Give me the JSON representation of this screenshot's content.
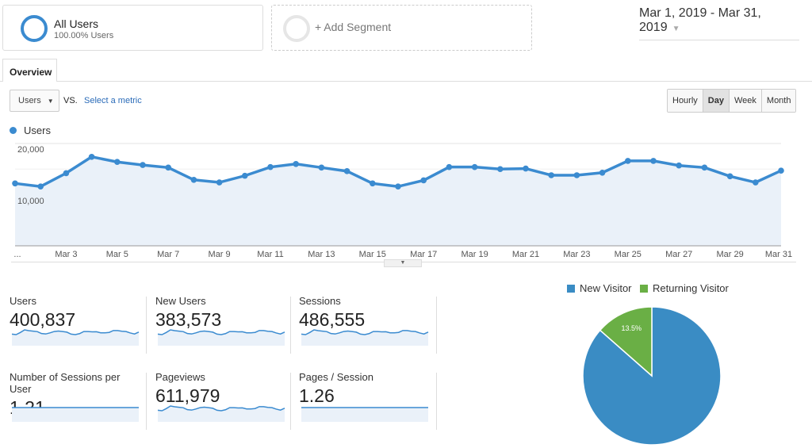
{
  "segments": {
    "all_users": {
      "title": "All Users",
      "subtitle": "100.00% Users"
    },
    "add_segment": "+ Add Segment"
  },
  "date_range": "Mar 1, 2019 - Mar 31, 2019",
  "tabs": [
    {
      "label": "Overview",
      "active": true
    }
  ],
  "controls": {
    "metric_select": "Users",
    "vs": "VS.",
    "select_metric": "Select a metric",
    "granularity": [
      {
        "label": "Hourly",
        "active": false
      },
      {
        "label": "Day",
        "active": true
      },
      {
        "label": "Week",
        "active": false
      },
      {
        "label": "Month",
        "active": false
      }
    ]
  },
  "colors": {
    "accent": "#3b8bd0",
    "area": "#eaf1f9",
    "new_visitor": "#3a8cc4",
    "returning_visitor": "#6aaf45"
  },
  "chart_data": [
    {
      "type": "area",
      "series": [
        {
          "name": "Users",
          "values": [
            12200,
            11600,
            14200,
            17400,
            16400,
            15800,
            15300,
            12900,
            12400,
            13700,
            15400,
            16000,
            15300,
            14600,
            12200,
            11600,
            12800,
            15400,
            15400,
            15000,
            15100,
            13800,
            13800,
            14300,
            16600,
            16600,
            15700,
            15300,
            13600,
            12400,
            14700
          ]
        }
      ],
      "x": [
        "Mar 1",
        "Mar 2",
        "Mar 3",
        "Mar 4",
        "Mar 5",
        "Mar 6",
        "Mar 7",
        "Mar 8",
        "Mar 9",
        "Mar 10",
        "Mar 11",
        "Mar 12",
        "Mar 13",
        "Mar 14",
        "Mar 15",
        "Mar 16",
        "Mar 17",
        "Mar 18",
        "Mar 19",
        "Mar 20",
        "Mar 21",
        "Mar 22",
        "Mar 23",
        "Mar 24",
        "Mar 25",
        "Mar 26",
        "Mar 27",
        "Mar 28",
        "Mar 29",
        "Mar 30",
        "Mar 31"
      ],
      "x_tick_labels": [
        "...",
        "Mar 3",
        "Mar 5",
        "Mar 7",
        "Mar 9",
        "Mar 11",
        "Mar 13",
        "Mar 15",
        "Mar 17",
        "Mar 19",
        "Mar 21",
        "Mar 23",
        "Mar 25",
        "Mar 27",
        "Mar 29",
        "Mar 31"
      ],
      "y_tick_labels": [
        "20,000",
        "10,000"
      ],
      "ylim": [
        0,
        20000
      ],
      "grid": true,
      "legend": "top-left"
    },
    {
      "type": "pie",
      "categories": [
        "New Visitor",
        "Returning Visitor"
      ],
      "values": [
        86.5,
        13.5
      ],
      "labels": [
        "86.5%",
        "13.5%"
      ],
      "legend": "top"
    }
  ],
  "metrics": [
    {
      "label": "Users",
      "value": "400,837",
      "trend": "daily"
    },
    {
      "label": "New Users",
      "value": "383,573",
      "trend": "daily"
    },
    {
      "label": "Sessions",
      "value": "486,555",
      "trend": "daily"
    },
    {
      "label": "Number of Sessions per User",
      "value": "1.21",
      "trend": "flat"
    },
    {
      "label": "Pageviews",
      "value": "611,979",
      "trend": "daily"
    },
    {
      "label": "Pages / Session",
      "value": "1.26",
      "trend": "flat"
    }
  ]
}
